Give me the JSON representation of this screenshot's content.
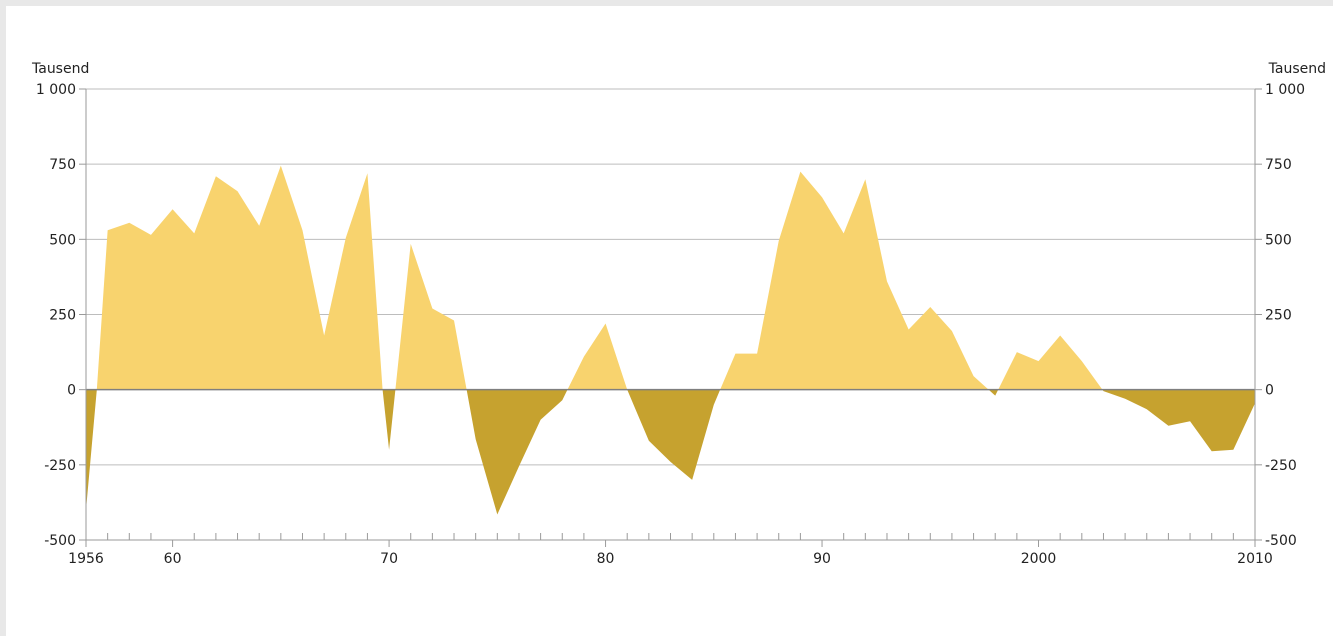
{
  "chart_data": {
    "type": "area",
    "title": "",
    "xlabel": "",
    "ylabel_left": "Tausend",
    "ylabel_right": "Tausend",
    "xlim": [
      1956,
      2010
    ],
    "ylim": [
      -500,
      1000
    ],
    "y_ticks": [
      -500,
      -250,
      0,
      250,
      500,
      750,
      1000
    ],
    "y_tick_labels": [
      "-500",
      "-250",
      "0",
      "250",
      "500",
      "750",
      "1 000"
    ],
    "x_tick_labels": [
      {
        "value": 1956,
        "label": "1956"
      },
      {
        "value": 1960,
        "label": "60"
      },
      {
        "value": 1970,
        "label": "70"
      },
      {
        "value": 1980,
        "label": "80"
      },
      {
        "value": 1990,
        "label": "90"
      },
      {
        "value": 2000,
        "label": "2000"
      },
      {
        "value": 2010,
        "label": "2010"
      }
    ],
    "grid": true,
    "colors": {
      "positive": "#f8d36e",
      "negative": "#c6a22f"
    },
    "x": [
      1956,
      1956.5,
      1957,
      1958,
      1959,
      1960,
      1961,
      1962,
      1963,
      1964,
      1965,
      1966,
      1967,
      1968,
      1969,
      1969.7,
      1970,
      1971,
      1972,
      1973,
      1974,
      1975,
      1976,
      1977,
      1978,
      1979,
      1980,
      1981,
      1982,
      1983,
      1984,
      1985,
      1986,
      1987,
      1988,
      1989,
      1990,
      1991,
      1992,
      1993,
      1994,
      1995,
      1996,
      1997,
      1998,
      1999,
      2000,
      2001,
      2002,
      2003,
      2004,
      2005,
      2006,
      2007,
      2008,
      2009,
      2010
    ],
    "values": [
      -400,
      0,
      530,
      555,
      515,
      600,
      520,
      710,
      660,
      545,
      745,
      530,
      180,
      505,
      720,
      0,
      -200,
      485,
      270,
      230,
      -165,
      -415,
      -255,
      -100,
      -35,
      110,
      220,
      0,
      -170,
      -240,
      -300,
      -50,
      120,
      120,
      495,
      725,
      640,
      520,
      700,
      360,
      200,
      275,
      195,
      45,
      -20,
      125,
      95,
      180,
      95,
      -5,
      -30,
      -65,
      -120,
      -105,
      -205,
      -200,
      -45
    ]
  }
}
